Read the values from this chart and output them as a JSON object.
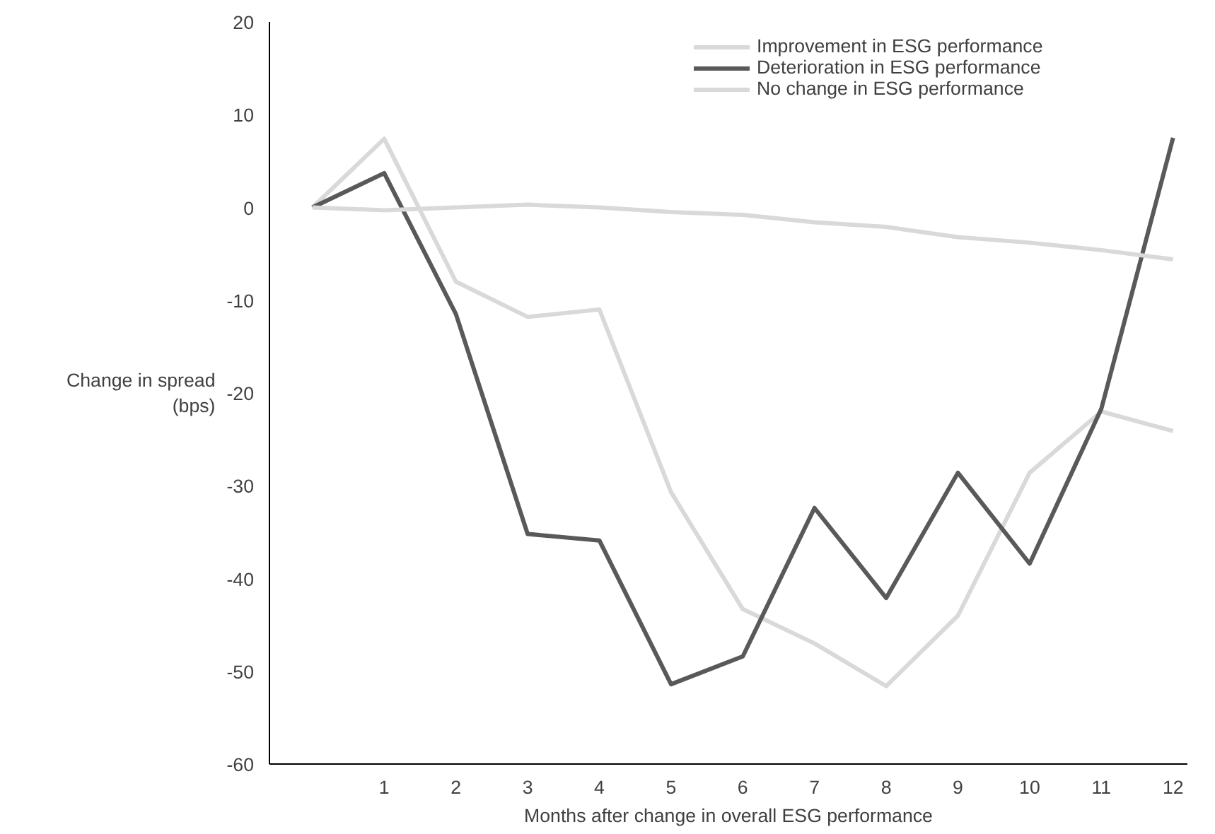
{
  "chart_data": {
    "type": "line",
    "xlabel": "Months after change in overall ESG performance",
    "ylabel": "Change in spread\n(bps)",
    "x": [
      0,
      1,
      2,
      3,
      4,
      5,
      6,
      7,
      8,
      9,
      10,
      11,
      12
    ],
    "xlim": [
      -0.6,
      12.2
    ],
    "xticks": [
      1,
      2,
      3,
      4,
      5,
      6,
      7,
      8,
      9,
      10,
      11,
      12
    ],
    "series": [
      {
        "name": "Improvement in ESG performance",
        "color": "#d9d9d9",
        "values": [
          0,
          7.4,
          -8,
          -11.8,
          -11,
          -30.7,
          -43.3,
          -47,
          -51.6,
          -44,
          -28.6,
          -22,
          -24.1
        ]
      },
      {
        "name": "Deterioration in ESG performance",
        "color": "#595959",
        "values": [
          0,
          3.7,
          -11.5,
          -35.2,
          -35.9,
          -51.4,
          -48.4,
          -32.4,
          -42.1,
          -28.6,
          -38.4,
          -21.7,
          7.5
        ]
      },
      {
        "name": "No change in ESG performance",
        "color": "#d9d9d9",
        "values": [
          0,
          -0.3,
          0,
          0.3,
          0,
          -0.5,
          -0.8,
          -1.6,
          -2.1,
          -3.2,
          -3.8,
          -4.6,
          -5.6
        ]
      }
    ],
    "ylim": [
      -60,
      20
    ],
    "yticks": [
      -60,
      -50,
      -40,
      -30,
      -20,
      -10,
      0,
      10,
      20
    ],
    "grid": false,
    "legend": "top right",
    "marker": "none",
    "line_style": "solid"
  }
}
